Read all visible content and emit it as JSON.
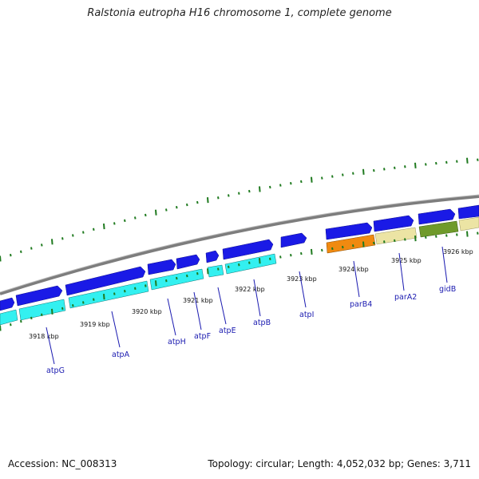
{
  "title": "Ralstonia eutropha H16 chromosome 1, complete genome",
  "footer": {
    "accession": "Accession: NC_008313",
    "summary": "Topology: circular; Length: 4,052,032 bp; Genes: 3,711"
  },
  "colors": {
    "backbone": "#8a8a8a",
    "tick": "#1f7a1f",
    "forward_gene": "#1a1ae6",
    "reverse_gene": "#33f0f0",
    "orange_gene": "#f08a10",
    "tan_gene": "#ece4a4",
    "olive_gene": "#6f9a2a",
    "label_line": "#1a1ab0",
    "label_text": "#1a1ab0"
  },
  "kbp_labels": [
    "3918 kbp",
    "3919 kbp",
    "3920 kbp",
    "3921 kbp",
    "3922 kbp",
    "3923 kbp",
    "3924 kbp",
    "3925 kbp",
    "3926 kbp"
  ],
  "gene_labels": [
    "atpG",
    "atpA",
    "atpH",
    "atpF",
    "atpE",
    "atpB",
    "atpI",
    "parB4",
    "parA2",
    "gidB"
  ]
}
